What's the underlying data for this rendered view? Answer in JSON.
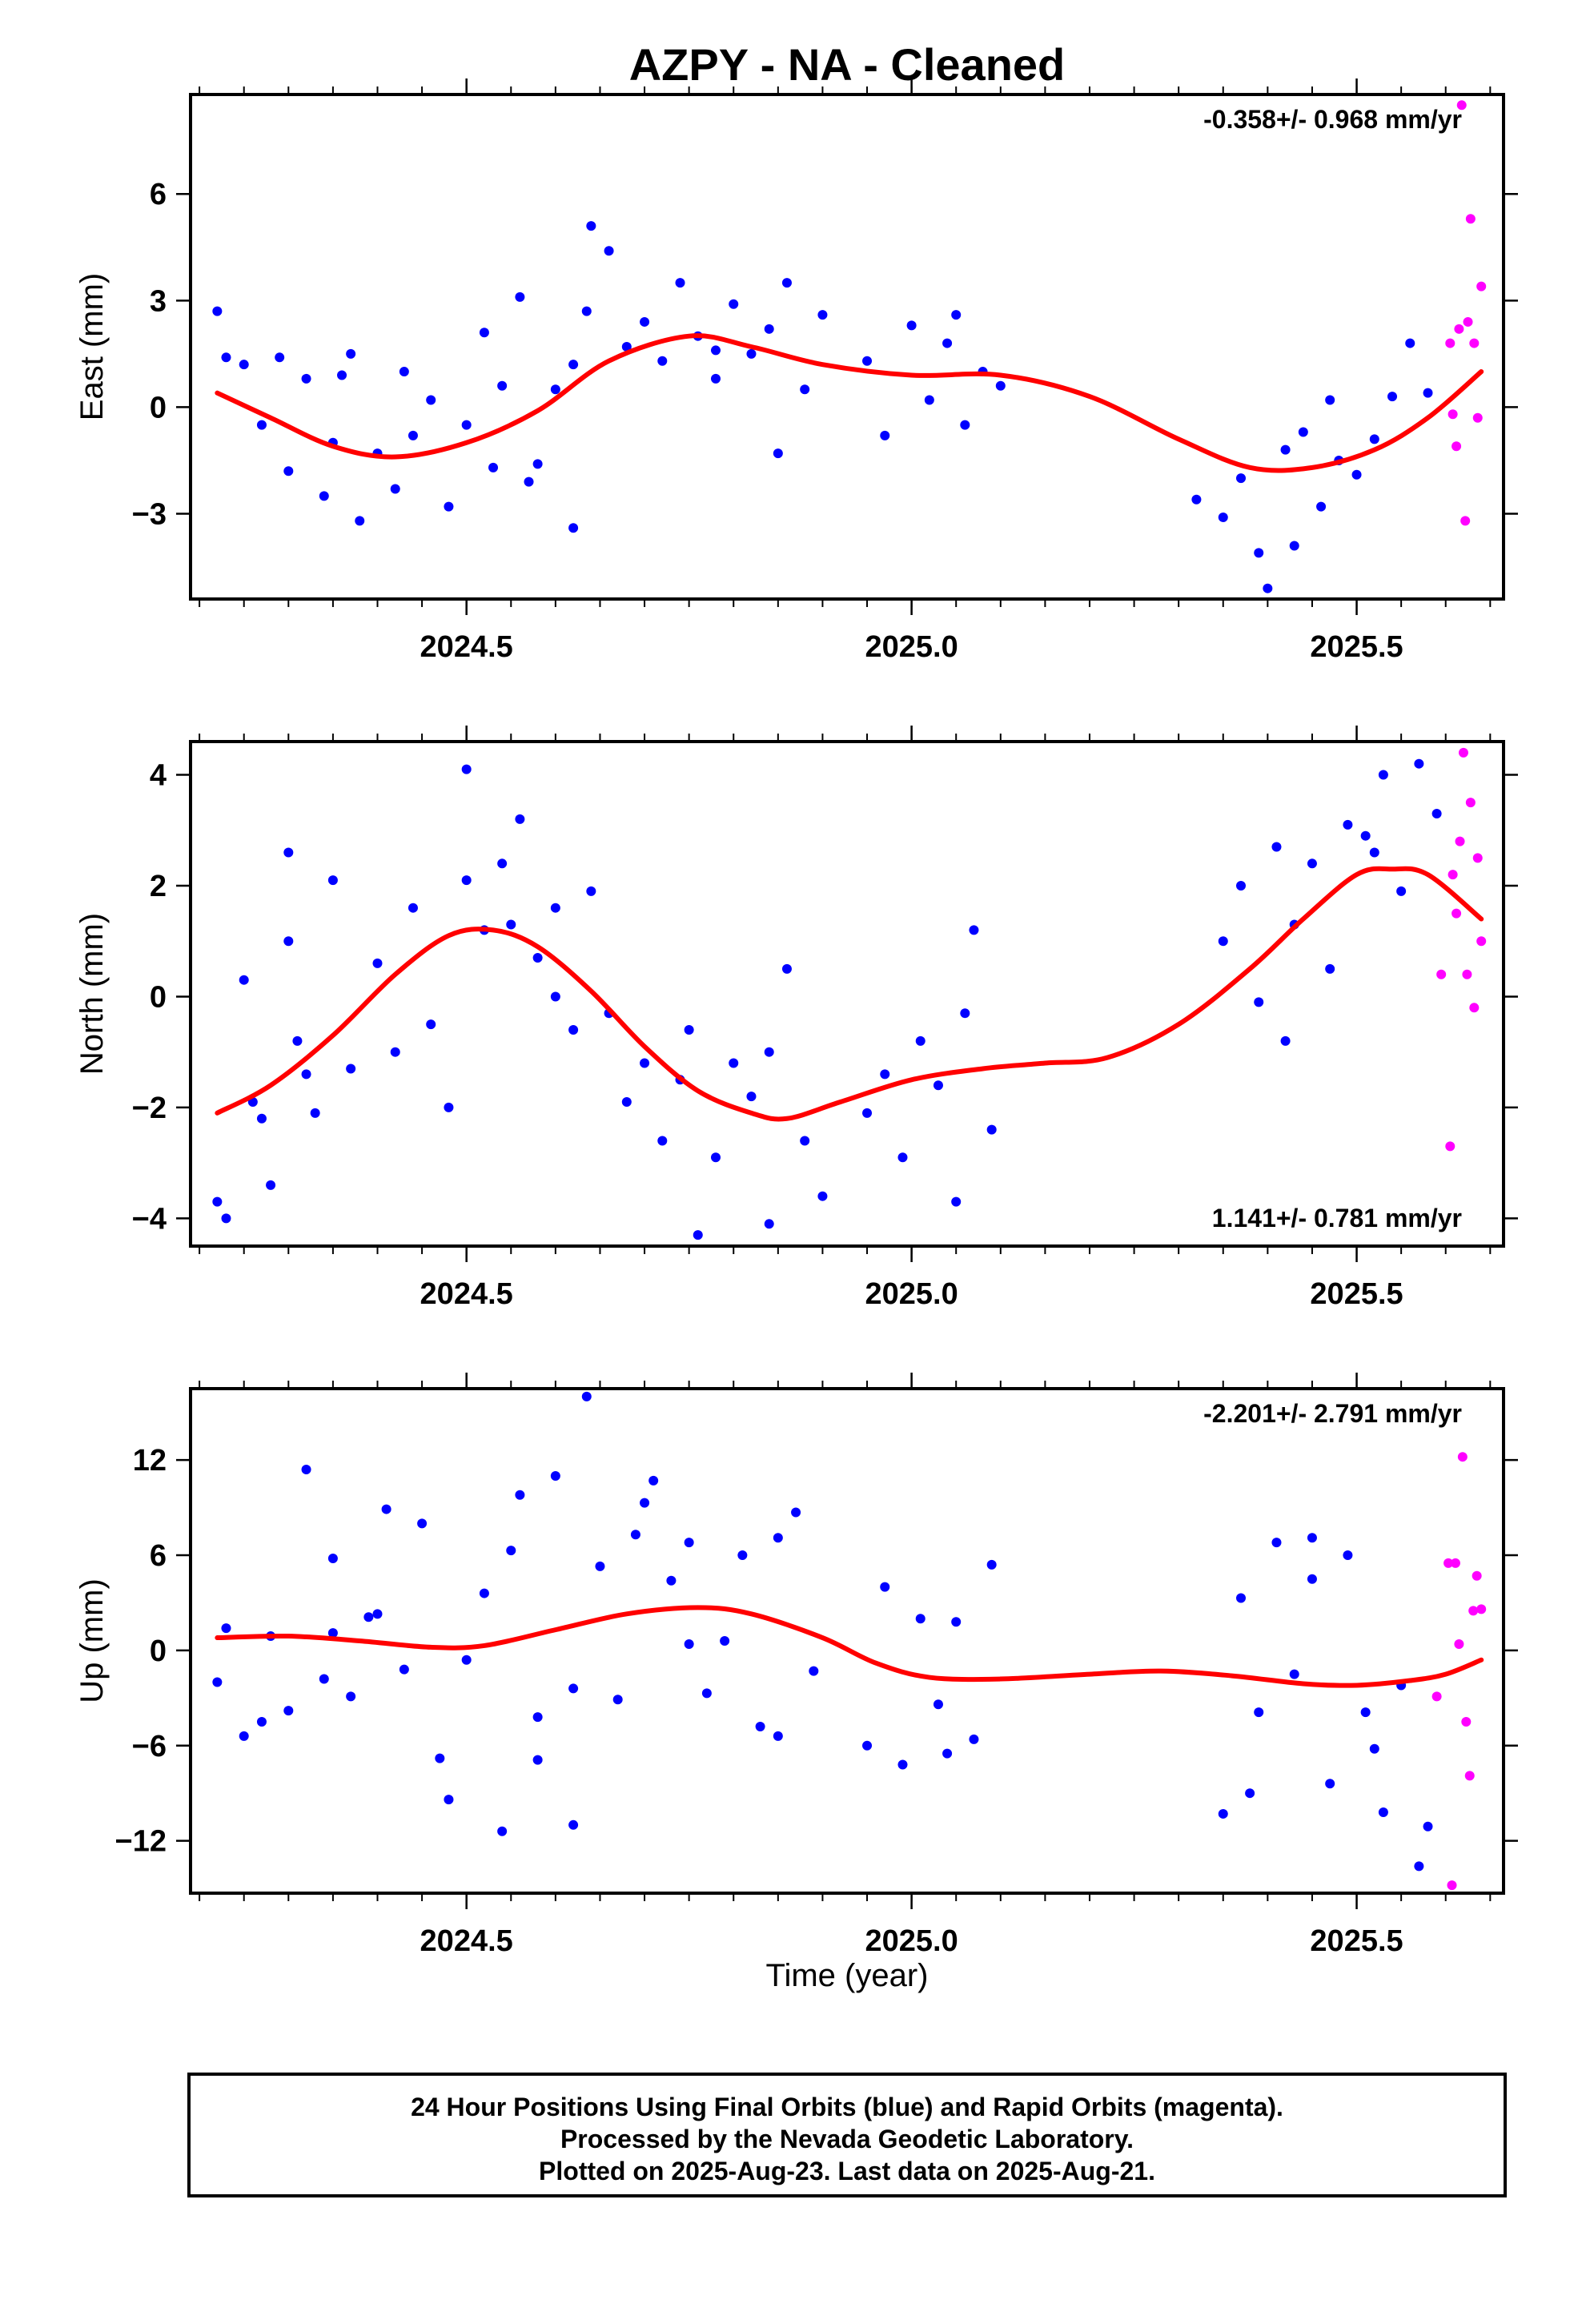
{
  "title": "AZPY  - NA - Cleaned",
  "xlabel": "Time (year)",
  "footer": {
    "line1": "24 Hour Positions Using Final Orbits (blue) and Rapid Orbits (magenta).",
    "line2": "Processed by the Nevada Geodetic Laboratory.",
    "line3": "Plotted on 2025-Aug-23. Last data on 2025-Aug-21."
  },
  "colors": {
    "final": "#0000ff",
    "rapid": "#ff00ff",
    "fit": "#ff0000",
    "frame": "#000000"
  },
  "chart_data": [
    {
      "type": "scatter",
      "component": "east",
      "ylabel": "East (mm)",
      "rate_text": "-0.358+/- 0.968 mm/yr",
      "rate_position": "top-right",
      "xlim": [
        2024.19,
        2025.665
      ],
      "ylim": [
        -5.4,
        8.8
      ],
      "xticks": [
        2024.5,
        2025.0,
        2025.5
      ],
      "xtick_labels": [
        "2024.5",
        "2025.0",
        "2025.5"
      ],
      "yticks": [
        -3,
        0,
        3,
        6
      ],
      "ytick_labels": [
        "−3",
        "0",
        "3",
        "6"
      ],
      "fit_curve": {
        "x": [
          2024.22,
          2024.28,
          2024.35,
          2024.42,
          2024.5,
          2024.58,
          2024.66,
          2024.75,
          2024.82,
          2024.9,
          2025.0,
          2025.1,
          2025.2,
          2025.3,
          2025.38,
          2025.45,
          2025.52,
          2025.58,
          2025.64
        ],
        "y": [
          0.4,
          -0.3,
          -1.1,
          -1.4,
          -1.0,
          -0.1,
          1.3,
          2.0,
          1.7,
          1.2,
          0.9,
          0.9,
          0.3,
          -0.9,
          -1.7,
          -1.7,
          -1.2,
          -0.3,
          1.0
        ]
      },
      "rapid_points": {
        "x": [
          2025.605,
          2025.608,
          2025.612,
          2025.615,
          2025.618,
          2025.622,
          2025.625,
          2025.628,
          2025.632,
          2025.636,
          2025.64
        ],
        "y": [
          1.8,
          -0.2,
          -1.1,
          2.2,
          8.5,
          -3.2,
          2.4,
          5.3,
          1.8,
          -0.3,
          3.4
        ]
      },
      "final_points": {
        "x": [
          2024.22,
          2024.25,
          2024.27,
          2024.29,
          2024.3,
          2024.32,
          2024.34,
          2024.35,
          2024.37,
          2024.38,
          2024.4,
          2024.42,
          2024.44,
          2024.46,
          2024.48,
          2024.5,
          2024.52,
          2024.54,
          2024.56,
          2024.58,
          2024.6,
          2024.62,
          2024.635,
          2024.64,
          2024.66,
          2024.68,
          2024.7,
          2024.72,
          2024.74,
          2024.76,
          2024.78,
          2024.8,
          2024.82,
          2024.84,
          2024.86,
          2024.88,
          2024.9,
          2024.95,
          2024.97,
          2025.0,
          2025.02,
          2025.04,
          2025.06,
          2025.08,
          2025.1,
          2025.35,
          2025.37,
          2025.39,
          2025.4,
          2025.42,
          2025.44,
          2025.46,
          2025.48,
          2025.5,
          2025.52,
          2025.54,
          2025.56,
          2025.58,
          2025.32,
          2024.23,
          2024.36,
          2024.62,
          2024.57,
          2024.78,
          2024.85,
          2024.43,
          2024.53,
          2025.05,
          2025.43,
          2025.47
        ],
        "y": [
          2.7,
          1.2,
          -0.5,
          1.4,
          -1.8,
          0.8,
          -2.5,
          -1.0,
          1.5,
          -3.2,
          -1.3,
          -2.3,
          -0.8,
          0.2,
          -2.8,
          -0.5,
          2.1,
          0.6,
          3.1,
          -1.6,
          0.5,
          -3.4,
          2.7,
          5.1,
          4.4,
          1.7,
          2.4,
          1.3,
          3.5,
          2.0,
          0.8,
          2.9,
          1.5,
          2.2,
          3.5,
          0.5,
          2.6,
          1.3,
          -0.8,
          2.3,
          0.2,
          1.8,
          -0.5,
          1.0,
          0.6,
          -3.1,
          -2.0,
          -4.1,
          -5.1,
          -1.2,
          -0.7,
          -2.8,
          -1.5,
          -1.9,
          -0.9,
          0.3,
          1.8,
          0.4,
          -2.6,
          1.4,
          0.9,
          1.2,
          -2.1,
          1.6,
          -1.3,
          1.0,
          -1.7,
          2.6,
          -3.9,
          0.2
        ]
      }
    },
    {
      "type": "scatter",
      "component": "north",
      "ylabel": "North (mm)",
      "rate_text": "1.141+/- 0.781 mm/yr",
      "rate_position": "bottom-right",
      "xlim": [
        2024.19,
        2025.665
      ],
      "ylim": [
        -4.5,
        4.6
      ],
      "xticks": [
        2024.5,
        2025.0,
        2025.5
      ],
      "xtick_labels": [
        "2024.5",
        "2025.0",
        "2025.5"
      ],
      "yticks": [
        -4,
        -2,
        0,
        2,
        4
      ],
      "ytick_labels": [
        "−4",
        "−2",
        "0",
        "2",
        "4"
      ],
      "fit_curve": {
        "x": [
          2024.22,
          2024.28,
          2024.35,
          2024.42,
          2024.48,
          2024.53,
          2024.58,
          2024.64,
          2024.7,
          2024.76,
          2024.82,
          2024.86,
          2024.92,
          2025.0,
          2025.08,
          2025.15,
          2025.22,
          2025.3,
          2025.38,
          2025.44,
          2025.5,
          2025.54,
          2025.58,
          2025.64
        ],
        "y": [
          -2.1,
          -1.6,
          -0.7,
          0.4,
          1.1,
          1.2,
          0.9,
          0.1,
          -0.9,
          -1.7,
          -2.1,
          -2.2,
          -1.9,
          -1.5,
          -1.3,
          -1.2,
          -1.1,
          -0.5,
          0.5,
          1.4,
          2.2,
          2.3,
          2.2,
          1.4
        ]
      },
      "rapid_points": {
        "x": [
          2025.595,
          2025.605,
          2025.608,
          2025.612,
          2025.616,
          2025.62,
          2025.624,
          2025.628,
          2025.632,
          2025.636,
          2025.64
        ],
        "y": [
          0.4,
          -2.7,
          2.2,
          1.5,
          2.8,
          4.4,
          0.4,
          3.5,
          -0.2,
          2.5,
          1.0
        ]
      },
      "final_points": {
        "x": [
          2024.22,
          2024.23,
          2024.25,
          2024.26,
          2024.28,
          2024.3,
          2024.31,
          2024.33,
          2024.35,
          2024.37,
          2024.4,
          2024.42,
          2024.44,
          2024.46,
          2024.48,
          2024.5,
          2024.52,
          2024.54,
          2024.56,
          2024.58,
          2024.6,
          2024.62,
          2024.64,
          2024.66,
          2024.68,
          2024.7,
          2024.72,
          2024.74,
          2024.76,
          2024.78,
          2024.8,
          2024.82,
          2024.84,
          2024.86,
          2024.88,
          2024.9,
          2024.95,
          2024.97,
          2024.99,
          2025.01,
          2025.03,
          2025.05,
          2025.07,
          2025.09,
          2025.35,
          2025.37,
          2025.39,
          2025.41,
          2025.43,
          2025.45,
          2025.47,
          2025.49,
          2025.51,
          2025.53,
          2025.55,
          2025.57,
          2025.59,
          2024.32,
          2024.5,
          2024.55,
          2024.75,
          2024.84,
          2025.06,
          2025.52,
          2024.27,
          2024.3,
          2024.6,
          2025.42
        ],
        "y": [
          -3.7,
          -4.0,
          0.3,
          -1.9,
          -3.4,
          2.6,
          -0.8,
          -2.1,
          2.1,
          -1.3,
          0.6,
          -1.0,
          1.6,
          -0.5,
          -2.0,
          4.1,
          1.2,
          2.4,
          3.2,
          0.7,
          1.6,
          -0.6,
          1.9,
          -0.3,
          -1.9,
          -1.2,
          -2.6,
          -1.5,
          -4.3,
          -2.9,
          -1.2,
          -1.8,
          -4.1,
          0.5,
          -2.6,
          -3.6,
          -2.1,
          -1.4,
          -2.9,
          -0.8,
          -1.6,
          -3.7,
          1.2,
          -2.4,
          1.0,
          2.0,
          -0.1,
          2.7,
          1.3,
          2.4,
          0.5,
          3.1,
          2.9,
          4.0,
          1.9,
          4.2,
          3.3,
          -1.4,
          2.1,
          1.3,
          -0.6,
          -1.0,
          -0.3,
          2.6,
          -2.2,
          1.0,
          0.0,
          -0.8
        ]
      }
    },
    {
      "type": "scatter",
      "component": "up",
      "ylabel": "Up (mm)",
      "rate_text": "-2.201+/- 2.791 mm/yr",
      "rate_position": "top-right",
      "xlim": [
        2024.19,
        2025.665
      ],
      "ylim": [
        -15.3,
        16.5
      ],
      "xticks": [
        2024.5,
        2025.0,
        2025.5
      ],
      "xtick_labels": [
        "2024.5",
        "2025.0",
        "2025.5"
      ],
      "yticks": [
        -12,
        -6,
        0,
        6,
        12
      ],
      "ytick_labels": [
        "−12",
        "−6",
        "0",
        "6",
        "12"
      ],
      "fit_curve": {
        "x": [
          2024.22,
          2024.3,
          2024.38,
          2024.46,
          2024.52,
          2024.6,
          2024.68,
          2024.76,
          2024.82,
          2024.9,
          2024.96,
          2025.02,
          2025.1,
          2025.2,
          2025.28,
          2025.36,
          2025.44,
          2025.5,
          2025.56,
          2025.6,
          2025.64
        ],
        "y": [
          0.8,
          0.9,
          0.6,
          0.2,
          0.3,
          1.3,
          2.3,
          2.7,
          2.3,
          0.8,
          -0.8,
          -1.7,
          -1.8,
          -1.5,
          -1.3,
          -1.6,
          -2.1,
          -2.2,
          -1.9,
          -1.5,
          -0.6
        ]
      },
      "rapid_points": {
        "x": [
          2025.59,
          2025.603,
          2025.607,
          2025.611,
          2025.615,
          2025.619,
          2025.623,
          2025.627,
          2025.631,
          2025.635,
          2025.64
        ],
        "y": [
          -2.9,
          5.5,
          -14.8,
          5.5,
          0.4,
          12.2,
          -4.5,
          -7.9,
          2.5,
          4.7,
          2.6
        ]
      },
      "final_points": {
        "x": [
          2024.22,
          2024.23,
          2024.25,
          2024.27,
          2024.28,
          2024.3,
          2024.32,
          2024.34,
          2024.35,
          2024.37,
          2024.39,
          2024.41,
          2024.43,
          2024.45,
          2024.47,
          2024.48,
          2024.5,
          2024.52,
          2024.54,
          2024.56,
          2024.58,
          2024.6,
          2024.62,
          2024.635,
          2024.65,
          2024.67,
          2024.69,
          2024.71,
          2024.73,
          2024.75,
          2024.77,
          2024.79,
          2024.81,
          2024.83,
          2024.85,
          2024.87,
          2024.89,
          2024.95,
          2024.97,
          2024.99,
          2025.01,
          2025.03,
          2025.05,
          2025.07,
          2025.09,
          2025.35,
          2025.37,
          2025.39,
          2025.41,
          2025.43,
          2025.45,
          2025.47,
          2025.49,
          2025.51,
          2025.53,
          2025.55,
          2025.57,
          2025.58,
          2024.35,
          2024.55,
          2024.58,
          2024.7,
          2024.85,
          2025.04,
          2025.45,
          2025.52,
          2024.4,
          2024.62,
          2024.75,
          2025.38
        ],
        "y": [
          -2.0,
          1.4,
          -5.4,
          -4.5,
          0.9,
          -3.8,
          11.4,
          -1.8,
          5.8,
          -2.9,
          2.1,
          8.9,
          -1.2,
          8.0,
          -6.8,
          -9.4,
          -0.6,
          3.6,
          -11.4,
          9.8,
          -6.9,
          11.0,
          -2.4,
          16.0,
          5.3,
          -3.1,
          7.3,
          10.7,
          4.4,
          6.8,
          -2.7,
          0.6,
          6.0,
          -4.8,
          -5.4,
          8.7,
          -1.3,
          -6.0,
          4.0,
          -7.2,
          2.0,
          -3.4,
          1.8,
          -5.6,
          5.4,
          -10.3,
          3.3,
          -3.9,
          6.8,
          -1.5,
          4.5,
          -8.4,
          6.0,
          -3.9,
          -10.2,
          -2.2,
          -13.6,
          -11.1,
          1.1,
          6.3,
          -4.2,
          9.3,
          7.1,
          -6.5,
          7.1,
          -6.2,
          2.3,
          -11.0,
          0.4,
          -9.0
        ]
      }
    }
  ]
}
